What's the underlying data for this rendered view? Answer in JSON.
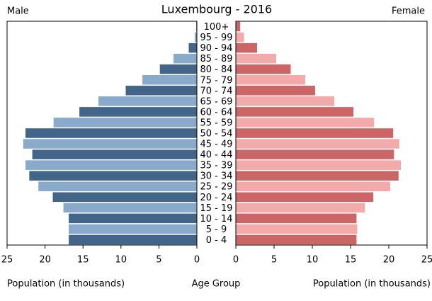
{
  "chart_data": {
    "type": "pyramid",
    "title": "Luxembourg - 2016",
    "categories": [
      "0 - 4",
      "5 - 9",
      "10 - 14",
      "15 - 19",
      "20 - 24",
      "25 - 29",
      "30 - 34",
      "35 - 39",
      "40 - 44",
      "45 - 49",
      "50 - 54",
      "55 - 59",
      "60 - 64",
      "65 - 69",
      "70 - 74",
      "75 - 79",
      "80 - 84",
      "85 - 89",
      "90 - 94",
      "95 - 99",
      "100+"
    ],
    "category_label": "Age Group",
    "xlabel_left": "Population (in thousands)",
    "xlabel_right": "Population (in thousands)",
    "series": [
      {
        "name": "Male",
        "colors": [
          "#44658a",
          "#8aaacb"
        ],
        "values": [
          16.9,
          16.9,
          16.9,
          17.6,
          19.0,
          20.9,
          22.1,
          22.6,
          21.7,
          22.9,
          22.6,
          18.9,
          15.5,
          13.0,
          9.4,
          7.2,
          4.9,
          3.1,
          1.1,
          0.3,
          0.1
        ]
      },
      {
        "name": "Female",
        "colors": [
          "#cc6666",
          "#f2aaaa"
        ],
        "values": [
          15.8,
          15.9,
          15.8,
          16.9,
          18.0,
          20.2,
          21.3,
          21.6,
          20.7,
          21.4,
          20.6,
          18.1,
          15.4,
          12.9,
          10.4,
          9.1,
          7.2,
          5.3,
          2.8,
          1.1,
          0.6
        ]
      }
    ],
    "xlim": [
      0,
      25
    ],
    "xticks": [
      0,
      5,
      10,
      15,
      20,
      25
    ]
  }
}
